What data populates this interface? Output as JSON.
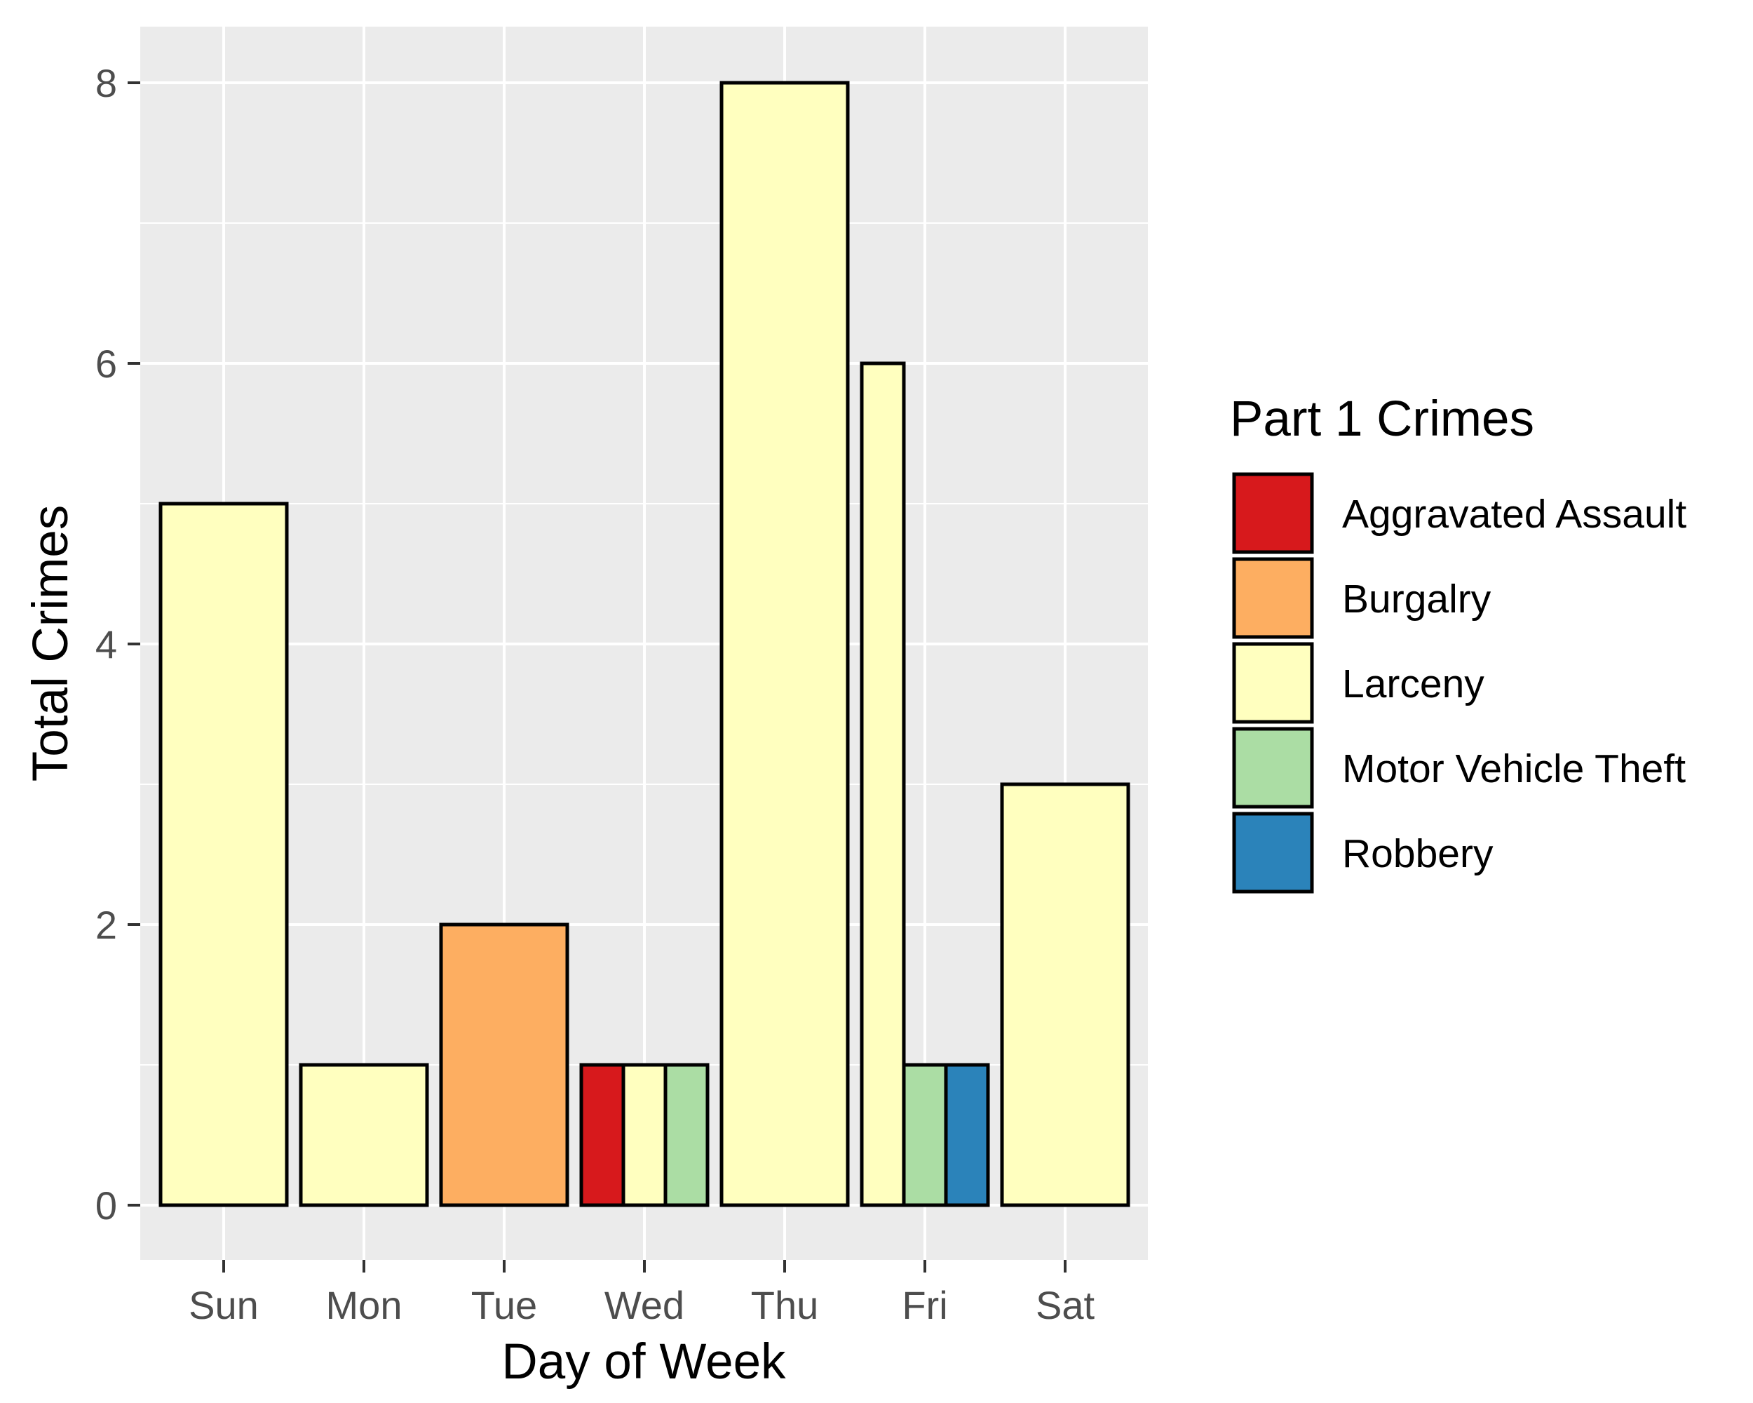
{
  "chart_data": {
    "type": "bar",
    "position": "dodge",
    "xlabel": "Day of Week",
    "ylabel": "Total Crimes",
    "categories": [
      "Sun",
      "Mon",
      "Tue",
      "Wed",
      "Thu",
      "Fri",
      "Sat"
    ],
    "ylim": [
      0,
      8
    ],
    "yticks": [
      0,
      2,
      4,
      6,
      8
    ],
    "grid": true,
    "legend": {
      "title": "Part 1 Crimes",
      "placement": "right",
      "entries": [
        "Aggravated Assault",
        "Burgalry",
        "Larceny",
        "Motor Vehicle Theft",
        "Robbery"
      ]
    },
    "colors": {
      "Aggravated Assault": "#d7191c",
      "Burgalry": "#fdae61",
      "Larceny": "#ffffbf",
      "Motor Vehicle Theft": "#abdda4",
      "Robbery": "#2b83ba"
    },
    "panel_background": "#ebebeb",
    "bars": [
      {
        "category": "Sun",
        "crime": "Larceny",
        "value": 5
      },
      {
        "category": "Mon",
        "crime": "Larceny",
        "value": 1
      },
      {
        "category": "Tue",
        "crime": "Burgalry",
        "value": 2
      },
      {
        "category": "Wed",
        "crime": "Aggravated Assault",
        "value": 1
      },
      {
        "category": "Wed",
        "crime": "Larceny",
        "value": 1
      },
      {
        "category": "Wed",
        "crime": "Motor Vehicle Theft",
        "value": 1
      },
      {
        "category": "Thu",
        "crime": "Larceny",
        "value": 8
      },
      {
        "category": "Fri",
        "crime": "Larceny",
        "value": 6
      },
      {
        "category": "Fri",
        "crime": "Motor Vehicle Theft",
        "value": 1
      },
      {
        "category": "Fri",
        "crime": "Robbery",
        "value": 1
      },
      {
        "category": "Sat",
        "crime": "Larceny",
        "value": 3
      }
    ]
  }
}
